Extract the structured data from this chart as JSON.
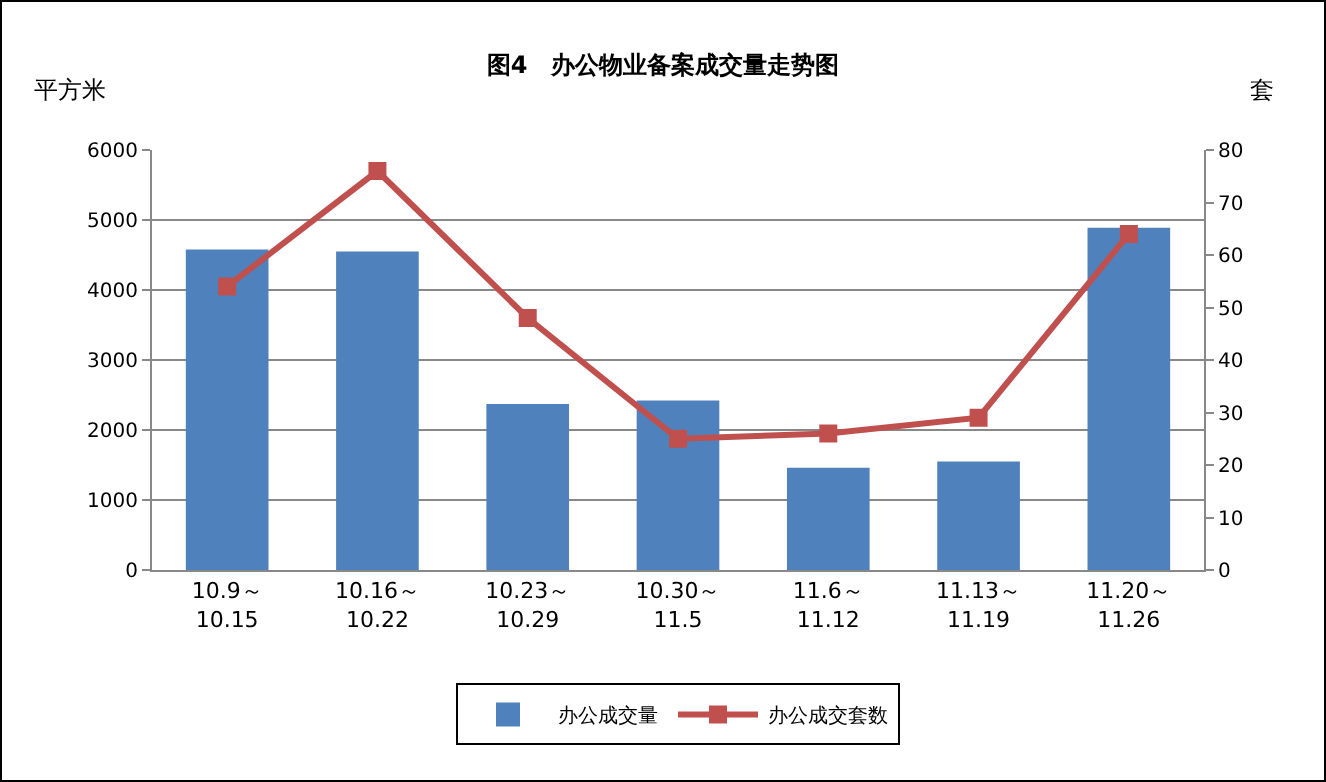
{
  "chart_data": {
    "type": "bar",
    "title": "图4　办公物业备案成交量走势图",
    "ylabel": "平方米",
    "y2label": "套",
    "categories": [
      "10.9～\n10.15",
      "10.16～\n10.22",
      "10.23～\n10.29",
      "10.30～\n11.5",
      "11.6～\n11.12",
      "11.13～\n11.19",
      "11.20～\n11.26"
    ],
    "series": [
      {
        "name": "办公成交量",
        "color": "#4f81bd",
        "values": [
          4580,
          4550,
          2370,
          2420,
          1460,
          1550,
          4890
        ]
      },
      {
        "name": "办公成交套数",
        "type": "line",
        "axis": "y2",
        "color": "#c0504d",
        "values": [
          54,
          76,
          48,
          25,
          26,
          29,
          64
        ]
      }
    ],
    "ylim": [
      0,
      6000
    ],
    "yticks": [
      0,
      1000,
      2000,
      3000,
      4000,
      5000,
      6000
    ],
    "y2lim": [
      0,
      80
    ],
    "y2ticks": [
      0,
      10,
      20,
      30,
      40,
      50,
      60,
      70,
      80
    ],
    "grid": "y",
    "legend": "bottom",
    "marker": "square",
    "line_style": "solid"
  }
}
